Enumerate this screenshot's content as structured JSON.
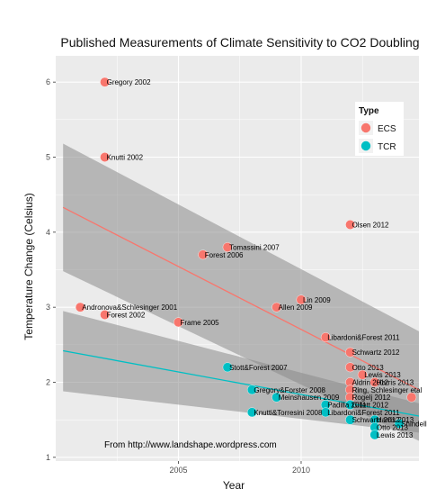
{
  "chart_data": {
    "type": "scatter",
    "title": "Published Measurements of Climate Sensitivity to CO2 Doubling",
    "xlabel": "Year",
    "ylabel": "Temperature Change (Celsius)",
    "xlim": [
      2000.0,
      2014.8
    ],
    "ylim": [
      0.95,
      6.35
    ],
    "xticks": [
      2005,
      2010
    ],
    "yticks": [
      1,
      2,
      3,
      4,
      5,
      6
    ],
    "grid": true,
    "legend": {
      "title": "Type",
      "position": "top-right",
      "items": [
        {
          "name": "ECS",
          "color": "#f8766d"
        },
        {
          "name": "TCR",
          "color": "#00bfc4"
        }
      ]
    },
    "annotation": "From http://www.landshape.wordpress.com",
    "series": [
      {
        "name": "ECS",
        "color": "#f8766d",
        "points": [
          {
            "label": "Gregory 2002",
            "x": 2002,
            "y": 6.0
          },
          {
            "label": "Knutti 2002",
            "x": 2002,
            "y": 5.0
          },
          {
            "label": "Andronova&Schlesinger 2001",
            "x": 2001,
            "y": 3.0
          },
          {
            "label": "Forest 2002",
            "x": 2002,
            "y": 2.9
          },
          {
            "label": "Frame 2005",
            "x": 2005,
            "y": 2.8
          },
          {
            "label": "Forest 2006",
            "x": 2006,
            "y": 3.7
          },
          {
            "label": "Tomassini 2007",
            "x": 2007,
            "y": 3.8
          },
          {
            "label": "Lin 2009",
            "x": 2010,
            "y": 3.1
          },
          {
            "label": "Allen 2009",
            "x": 2009,
            "y": 3.0
          },
          {
            "label": "Olsen 2012",
            "x": 2012,
            "y": 4.1
          },
          {
            "label": "Libardoni&Forest 2011",
            "x": 2011,
            "y": 2.6
          },
          {
            "label": "Schwartz 2012",
            "x": 2012,
            "y": 2.4
          },
          {
            "label": "Otto 2013",
            "x": 2012,
            "y": 2.2
          },
          {
            "label": "Lewis 2013",
            "x": 2012.5,
            "y": 2.1
          },
          {
            "label": "Aldrin 2012",
            "x": 2012,
            "y": 2.0
          },
          {
            "label": "Harris 2013",
            "x": 2013,
            "y": 2.0
          },
          {
            "label": "Ring, Schlesinger etal",
            "x": 2012,
            "y": 1.9
          },
          {
            "label": "Rogelj 2012",
            "x": 2012,
            "y": 1.8
          },
          {
            "label": "",
            "x": 2014.5,
            "y": 1.8
          }
        ]
      },
      {
        "name": "TCR",
        "color": "#00bfc4",
        "points": [
          {
            "label": "Stott&Forest 2007",
            "x": 2007,
            "y": 2.2
          },
          {
            "label": "Gregory&Forster 2008",
            "x": 2008,
            "y": 1.9
          },
          {
            "label": "Meinshausen 2009",
            "x": 2009,
            "y": 1.8
          },
          {
            "label": "Knutti&Torresini 2008",
            "x": 2008,
            "y": 1.6
          },
          {
            "label": "Padilla 2011",
            "x": 2011,
            "y": 1.7
          },
          {
            "label": "Libardoni&Forest 2011",
            "x": 2011,
            "y": 1.6
          },
          {
            "label": "Gillett 2012",
            "x": 2012,
            "y": 1.7
          },
          {
            "label": "Schwartz 2012",
            "x": 2012,
            "y": 1.5
          },
          {
            "label": "Harris 2013",
            "x": 2013,
            "y": 1.5
          },
          {
            "label": "Otto 2013",
            "x": 2013,
            "y": 1.4
          },
          {
            "label": "Lewis 2013",
            "x": 2013,
            "y": 1.3
          },
          {
            "label": "Shindell",
            "x": 2014,
            "y": 1.45
          }
        ]
      }
    ],
    "trend_lines": [
      {
        "series": "ECS",
        "color": "#f8766d",
        "x": [
          2000.3,
          2014.8
        ],
        "y": [
          4.33,
          1.9
        ],
        "band_upper": [
          5.18,
          2.68
        ],
        "band_lower": [
          3.48,
          1.22
        ]
      },
      {
        "series": "TCR",
        "color": "#00bfc4",
        "x": [
          2000.3,
          2014.8
        ],
        "y": [
          2.42,
          1.55
        ],
        "band_upper": [
          2.95,
          1.72
        ],
        "band_lower": [
          1.88,
          1.33
        ]
      }
    ]
  }
}
